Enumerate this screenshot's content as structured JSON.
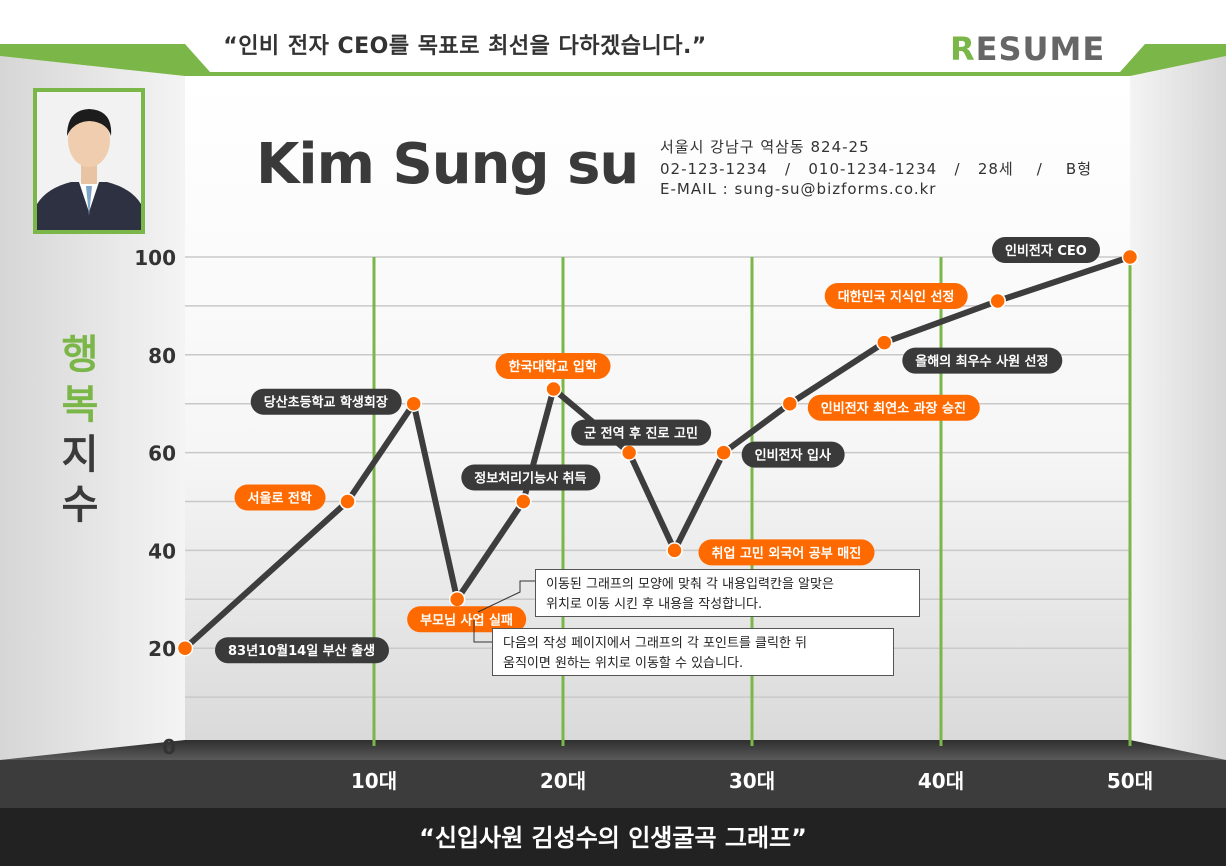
{
  "motto": "“인비 전자 CEO를 목표로 최선을 다하겠습니다.”",
  "brand": {
    "first": "R",
    "rest": "ESUME"
  },
  "name": "Kim Sung su",
  "contact": {
    "address": "서울시 강남구 역삼동 824-25",
    "phones": "02-123-1234   /   010-1234-1234   /   28세    /    B형",
    "email": "E-MAIL : sung-su@bizforms.co.kr"
  },
  "photo_icon": "person-portrait-icon",
  "bottom_title": "“신입사원 김성수의 인생굴곡 그래프”",
  "notes": [
    {
      "line1": "이동된 그래프의 모양에 맞춰 각 내용입력칸을 알맞은",
      "line2": "위치로 이동 시킨 후 내용을 작성합니다."
    },
    {
      "line1": "다음의 작성 페이지에서 그래프의 각 포인트를 클릭한 뒤",
      "line2": "움직이면 원하는 위치로 이동할 수 있습니다."
    }
  ],
  "colors": {
    "accent": "#7ab648",
    "point": "#ff6a00",
    "line": "#3d3d3d",
    "dark_label": "#3a3a3a",
    "floor": "#333333"
  },
  "chart_data": {
    "type": "line",
    "ylabel": "행복지수",
    "ylim": [
      0,
      100
    ],
    "yticks": [
      "0",
      "20",
      "40",
      "60",
      "80",
      "100"
    ],
    "xlim": [
      0,
      50
    ],
    "xticks": [
      {
        "value": 10,
        "label": "10대"
      },
      {
        "value": 20,
        "label": "20대"
      },
      {
        "value": 30,
        "label": "30대"
      },
      {
        "value": 40,
        "label": "40대"
      },
      {
        "value": 50,
        "label": "50대"
      }
    ],
    "grid": true,
    "points": [
      {
        "x": 0,
        "y": 20,
        "label": "83년10월14일 부산 출생",
        "style": "dark"
      },
      {
        "x": 8.6,
        "y": 50,
        "label": "서울로 전학",
        "style": "orange"
      },
      {
        "x": 12.1,
        "y": 70,
        "label": "당산초등학교 학생회장",
        "style": "dark"
      },
      {
        "x": 14.4,
        "y": 30,
        "label": "부모님 사업 실패",
        "style": "orange"
      },
      {
        "x": 17.9,
        "y": 50,
        "label": "정보처리기능사 취득",
        "style": "dark"
      },
      {
        "x": 19.5,
        "y": 73,
        "label": "한국대학교 입학",
        "style": "orange"
      },
      {
        "x": 23.5,
        "y": 60,
        "label": "군 전역 후 진로 고민",
        "style": "dark"
      },
      {
        "x": 25.9,
        "y": 40,
        "label": "취업 고민 외국어 공부 매진",
        "style": "orange"
      },
      {
        "x": 28.5,
        "y": 60,
        "label": "인비전자 입사",
        "style": "dark"
      },
      {
        "x": 32.0,
        "y": 70,
        "label": "인비전자 최연소 과장 승진",
        "style": "orange"
      },
      {
        "x": 37.0,
        "y": 82.5,
        "label": "올해의 최우수 사원 선정",
        "style": "dark"
      },
      {
        "x": 43.0,
        "y": 91,
        "label": "대한민국 지식인 선정",
        "style": "orange"
      },
      {
        "x": 50,
        "y": 100,
        "label": "인비전자 CEO",
        "style": "dark"
      }
    ]
  }
}
